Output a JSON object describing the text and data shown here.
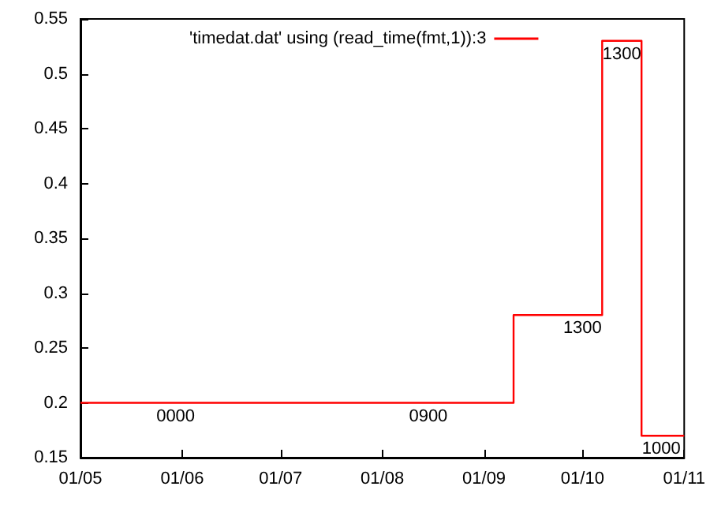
{
  "chart_data": {
    "type": "step",
    "x": [
      "--05-01",
      "--05-30",
      "--08-15",
      "--09-10",
      "--10-01",
      "--10-07",
      "--10-13",
      "--10-19",
      "--10-25",
      "--11-01"
    ],
    "series": [
      {
        "name": "'timedat.dat' using (read_time(fmt,1)):3",
        "color": "#ff0000",
        "values": [
          0.2,
          0.2,
          0.2,
          0.28,
          0.28,
          0.53,
          0.53,
          0.17,
          0.17,
          0.17
        ]
      }
    ],
    "annotations": [
      {
        "text": "0000",
        "x": "--05-30",
        "y": 0.2
      },
      {
        "text": "0900",
        "x": "--08-15",
        "y": 0.2
      },
      {
        "text": "1300",
        "x": "--10-01",
        "y": 0.28
      },
      {
        "text": "1300",
        "x": "--10-13",
        "y": 0.53
      },
      {
        "text": "1000",
        "x": "--10-25",
        "y": 0.17
      }
    ],
    "xlim": [
      "--05-01",
      "--11-01"
    ],
    "xticks": [
      {
        "value": "--05-01",
        "label": "01/05"
      },
      {
        "value": "--06-01",
        "label": "01/06"
      },
      {
        "value": "--07-01",
        "label": "01/07"
      },
      {
        "value": "--08-01",
        "label": "01/08"
      },
      {
        "value": "--09-01",
        "label": "01/09"
      },
      {
        "value": "--10-01",
        "label": "01/10"
      },
      {
        "value": "--11-01",
        "label": "01/11"
      }
    ],
    "ylim": [
      0.15,
      0.55
    ],
    "yticks": [
      0.15,
      0.2,
      0.25,
      0.3,
      0.35,
      0.4,
      0.45,
      0.5,
      0.55
    ],
    "legend": "top",
    "grid": false,
    "marker": "none",
    "line_style": "solid"
  }
}
